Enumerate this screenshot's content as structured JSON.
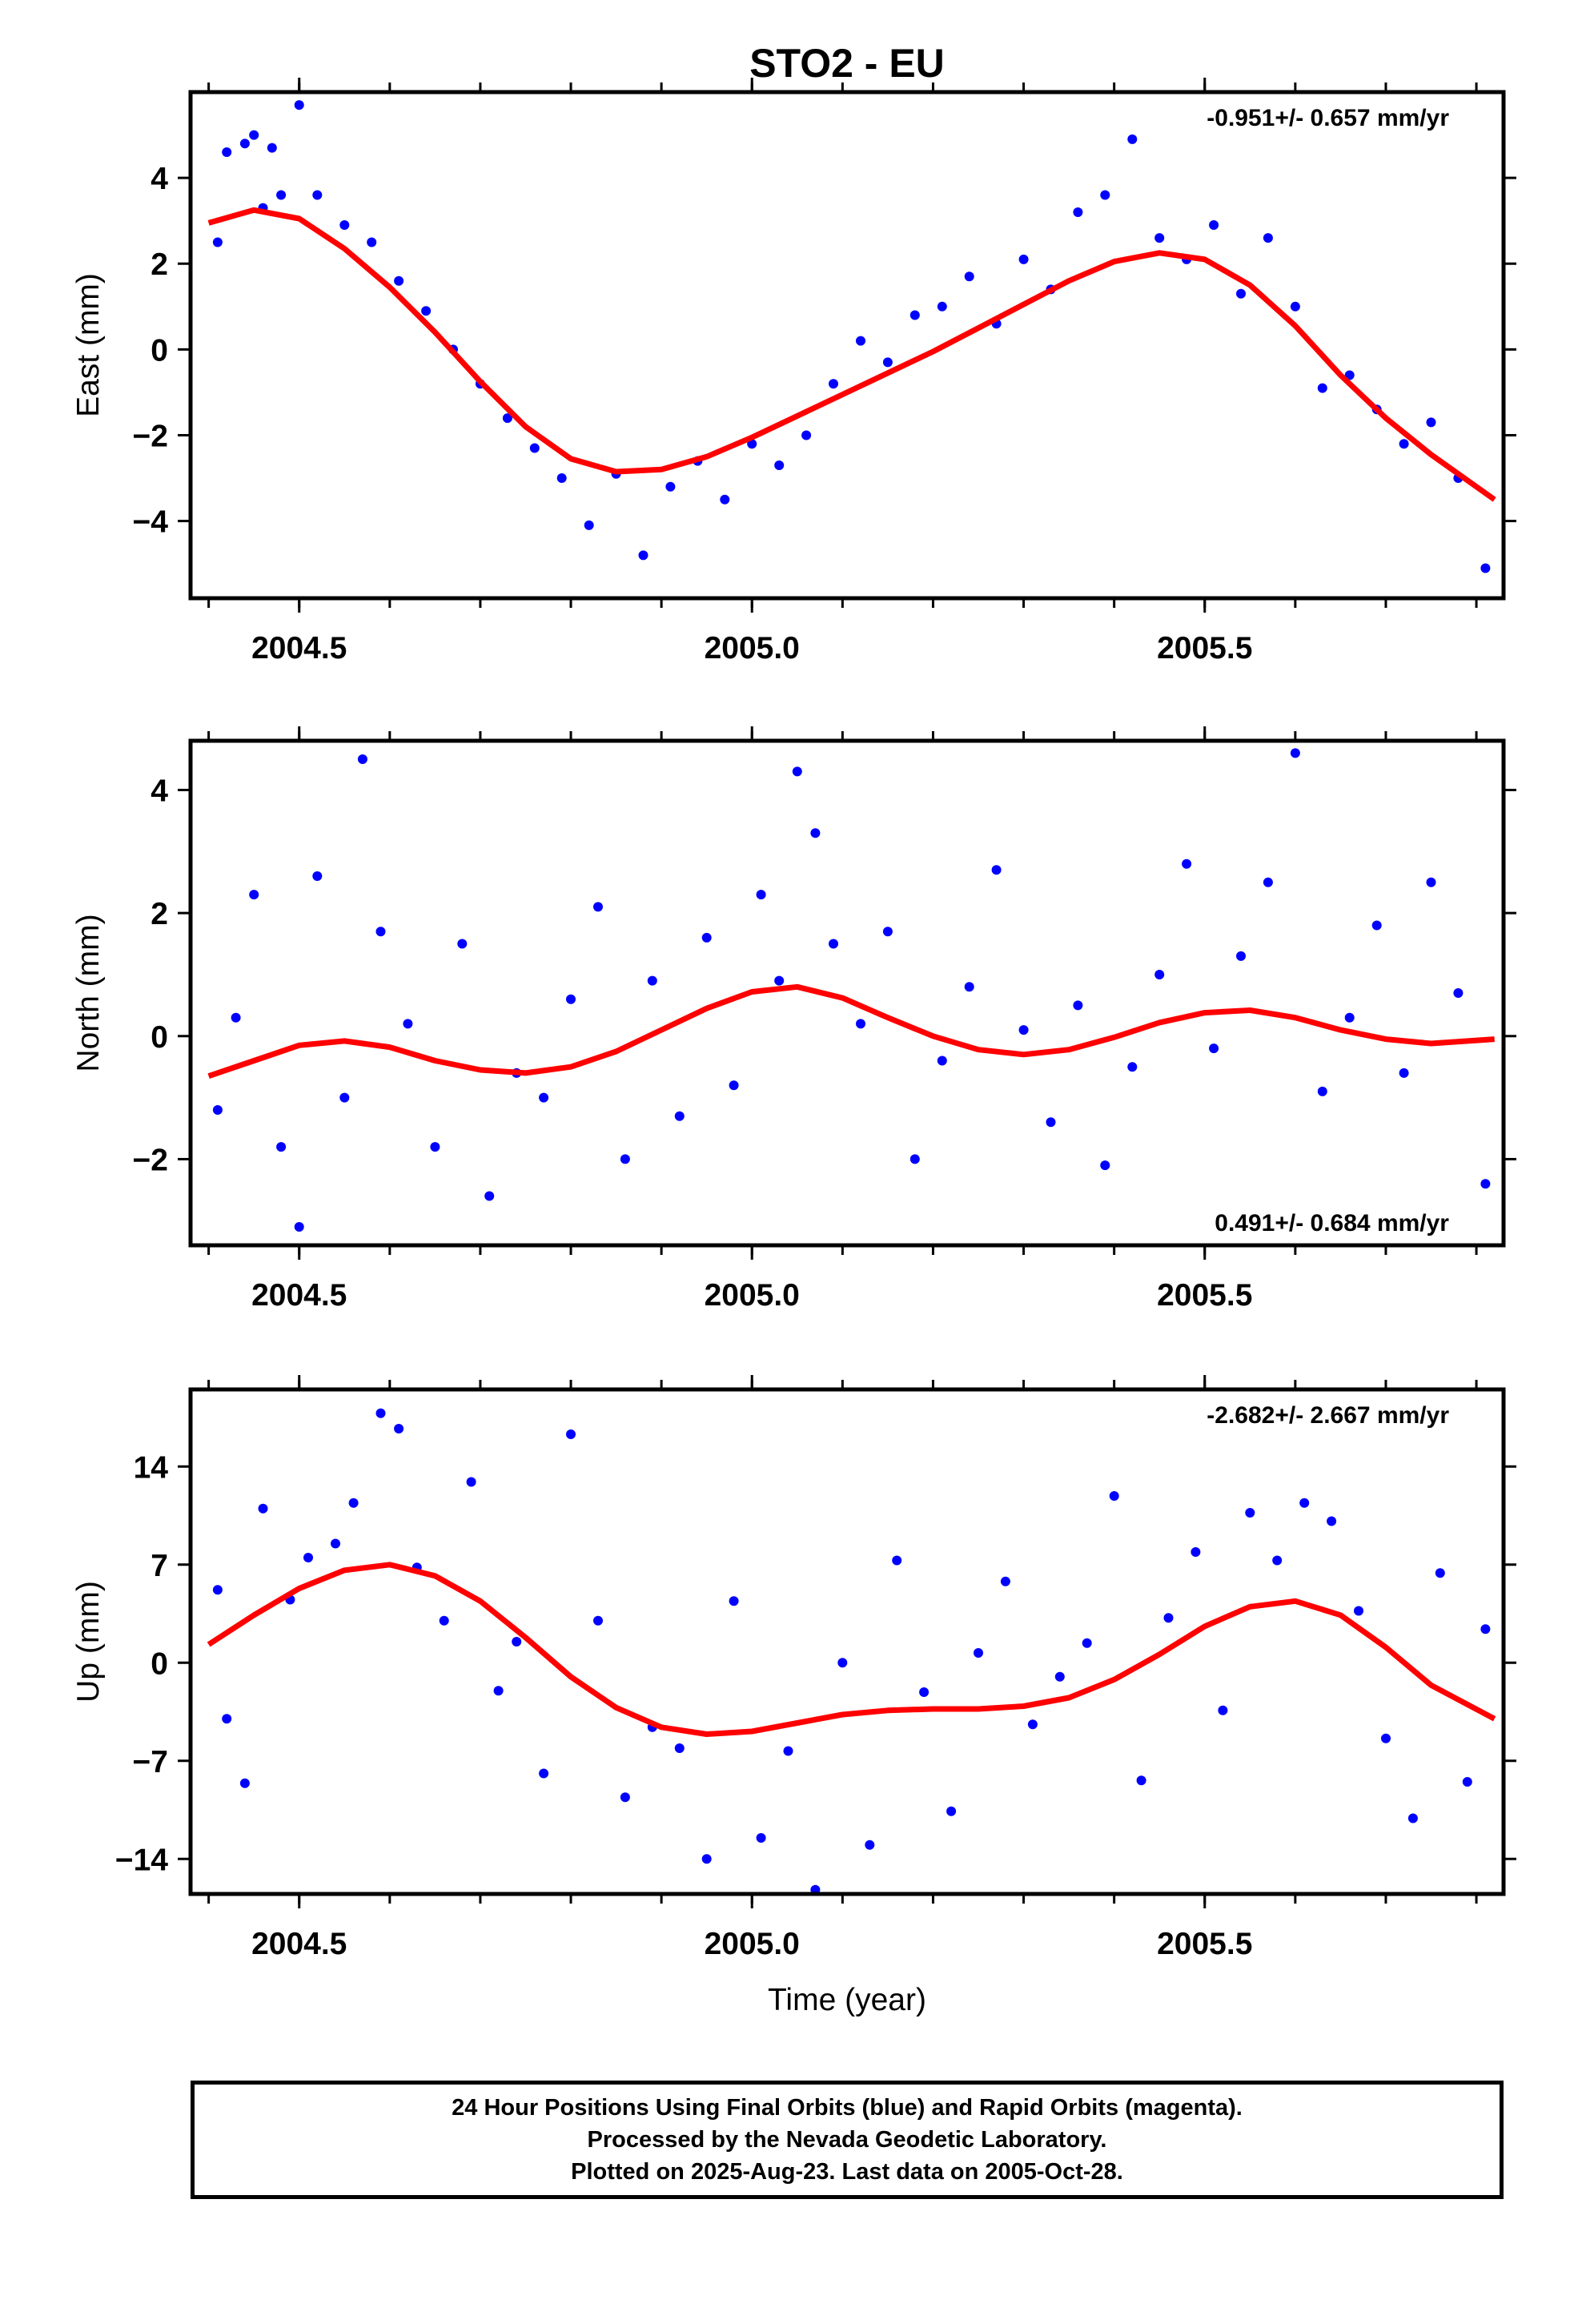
{
  "title": "STO2 - EU",
  "colors": {
    "points": "#0000ff",
    "fit": "#ff0000",
    "axes": "#000000",
    "background": "#ffffff"
  },
  "chart_data": [
    {
      "type": "scatter",
      "component": "East",
      "ylabel": "East (mm)",
      "xlabel": "",
      "xlim": [
        2004.38,
        2005.83
      ],
      "ylim": [
        -5.8,
        6.0
      ],
      "yticks": [
        -4,
        -2,
        0,
        2,
        4
      ],
      "ytick_labels": [
        "−4",
        "−2",
        "0",
        "2",
        "4"
      ],
      "xticks": [
        2004.5,
        2005.0,
        2005.5
      ],
      "xtick_labels": [
        "2004.5",
        "2005.0",
        "2005.5"
      ],
      "rate_annotation": "-0.951+/- 0.657 mm/yr",
      "annotation_position": "top-right",
      "grid": false,
      "series": [
        {
          "style": "points",
          "x": [
            2004.41,
            2004.42,
            2004.44,
            2004.45,
            2004.46,
            2004.47,
            2004.48,
            2004.5,
            2004.52,
            2004.55,
            2004.58,
            2004.61,
            2004.64,
            2004.67,
            2004.7,
            2004.73,
            2004.76,
            2004.79,
            2004.82,
            2004.85,
            2004.88,
            2004.91,
            2004.94,
            2004.97,
            2005.0,
            2005.03,
            2005.06,
            2005.09,
            2005.12,
            2005.15,
            2005.18,
            2005.21,
            2005.24,
            2005.27,
            2005.3,
            2005.33,
            2005.36,
            2005.39,
            2005.42,
            2005.45,
            2005.48,
            2005.51,
            2005.54,
            2005.57,
            2005.6,
            2005.63,
            2005.66,
            2005.69,
            2005.72,
            2005.75,
            2005.78,
            2005.81
          ],
          "y": [
            2.5,
            4.6,
            4.8,
            5.0,
            3.3,
            4.7,
            3.6,
            5.7,
            3.6,
            2.9,
            2.5,
            1.6,
            0.9,
            0.0,
            -0.8,
            -1.6,
            -2.3,
            -3.0,
            -4.1,
            -2.9,
            -4.8,
            -3.2,
            -2.6,
            -3.5,
            -2.2,
            -2.7,
            -2.0,
            -0.8,
            0.2,
            -0.3,
            0.8,
            1.0,
            1.7,
            0.6,
            2.1,
            1.4,
            3.2,
            3.6,
            4.9,
            2.6,
            2.1,
            2.9,
            1.3,
            2.6,
            1.0,
            -0.9,
            -0.6,
            -1.4,
            -2.2,
            -1.7,
            -3.0,
            -5.1
          ]
        },
        {
          "style": "line",
          "x": [
            2004.4,
            2004.45,
            2004.5,
            2004.55,
            2004.6,
            2004.65,
            2004.7,
            2004.75,
            2004.8,
            2004.85,
            2004.9,
            2004.95,
            2005.0,
            2005.05,
            2005.1,
            2005.15,
            2005.2,
            2005.25,
            2005.3,
            2005.35,
            2005.4,
            2005.45,
            2005.5,
            2005.55,
            2005.6,
            2005.65,
            2005.7,
            2005.75,
            2005.82
          ],
          "y": [
            2.95,
            3.25,
            3.05,
            2.35,
            1.45,
            0.4,
            -0.75,
            -1.8,
            -2.55,
            -2.85,
            -2.8,
            -2.5,
            -2.05,
            -1.55,
            -1.05,
            -0.55,
            -0.05,
            0.5,
            1.05,
            1.6,
            2.05,
            2.25,
            2.1,
            1.5,
            0.55,
            -0.6,
            -1.6,
            -2.45,
            -3.5
          ]
        }
      ]
    },
    {
      "type": "scatter",
      "component": "North",
      "ylabel": "North (mm)",
      "xlabel": "",
      "xlim": [
        2004.38,
        2005.83
      ],
      "ylim": [
        -3.4,
        4.8
      ],
      "yticks": [
        -2,
        0,
        2,
        4
      ],
      "ytick_labels": [
        "−2",
        "0",
        "2",
        "4"
      ],
      "xticks": [
        2004.5,
        2005.0,
        2005.5
      ],
      "xtick_labels": [
        "2004.5",
        "2005.0",
        "2005.5"
      ],
      "rate_annotation": "0.491+/- 0.684 mm/yr",
      "annotation_position": "bottom-right",
      "grid": false,
      "series": [
        {
          "style": "points",
          "x": [
            2004.41,
            2004.43,
            2004.45,
            2004.48,
            2004.5,
            2004.52,
            2004.55,
            2004.57,
            2004.59,
            2004.62,
            2004.65,
            2004.68,
            2004.71,
            2004.74,
            2004.77,
            2004.8,
            2004.83,
            2004.86,
            2004.89,
            2004.92,
            2004.95,
            2004.98,
            2005.01,
            2005.03,
            2005.05,
            2005.07,
            2005.09,
            2005.12,
            2005.15,
            2005.18,
            2005.21,
            2005.24,
            2005.27,
            2005.3,
            2005.33,
            2005.36,
            2005.39,
            2005.42,
            2005.45,
            2005.48,
            2005.51,
            2005.54,
            2005.57,
            2005.6,
            2005.63,
            2005.66,
            2005.69,
            2005.72,
            2005.75,
            2005.78,
            2005.81
          ],
          "y": [
            -1.2,
            0.3,
            2.3,
            -1.8,
            -3.1,
            2.6,
            -1.0,
            4.5,
            1.7,
            0.2,
            -1.8,
            1.5,
            -2.6,
            -0.6,
            -1.0,
            0.6,
            2.1,
            -2.0,
            0.9,
            -1.3,
            1.6,
            -0.8,
            2.3,
            0.9,
            4.3,
            3.3,
            1.5,
            0.2,
            1.7,
            -2.0,
            -0.4,
            0.8,
            2.7,
            0.1,
            -1.4,
            0.5,
            -2.1,
            -0.5,
            1.0,
            2.8,
            -0.2,
            1.3,
            2.5,
            4.6,
            -0.9,
            0.3,
            1.8,
            -0.6,
            2.5,
            0.7,
            -2.4
          ]
        },
        {
          "style": "line",
          "x": [
            2004.4,
            2004.45,
            2004.5,
            2004.55,
            2004.6,
            2004.65,
            2004.7,
            2004.75,
            2004.8,
            2004.85,
            2004.9,
            2004.95,
            2005.0,
            2005.05,
            2005.1,
            2005.15,
            2005.2,
            2005.25,
            2005.3,
            2005.35,
            2005.4,
            2005.45,
            2005.5,
            2005.55,
            2005.6,
            2005.65,
            2005.7,
            2005.75,
            2005.82
          ],
          "y": [
            -0.65,
            -0.4,
            -0.15,
            -0.08,
            -0.18,
            -0.4,
            -0.55,
            -0.6,
            -0.5,
            -0.25,
            0.1,
            0.45,
            0.72,
            0.8,
            0.62,
            0.3,
            0.0,
            -0.22,
            -0.3,
            -0.22,
            -0.02,
            0.22,
            0.38,
            0.42,
            0.3,
            0.1,
            -0.05,
            -0.12,
            -0.05
          ]
        }
      ]
    },
    {
      "type": "scatter",
      "component": "Up",
      "ylabel": "Up (mm)",
      "xlabel": "Time (year)",
      "xlim": [
        2004.38,
        2005.83
      ],
      "ylim": [
        -16.5,
        19.5
      ],
      "yticks": [
        -14,
        -7,
        0,
        7,
        14
      ],
      "ytick_labels": [
        "−14",
        "−7",
        "0",
        "7",
        "14"
      ],
      "xticks": [
        2004.5,
        2005.0,
        2005.5
      ],
      "xtick_labels": [
        "2004.5",
        "2005.0",
        "2005.5"
      ],
      "rate_annotation": "-2.682+/- 2.667 mm/yr",
      "annotation_position": "top-right",
      "grid": false,
      "series": [
        {
          "style": "points",
          "x": [
            2004.41,
            2004.42,
            2004.44,
            2004.46,
            2004.49,
            2004.51,
            2004.54,
            2004.56,
            2004.59,
            2004.61,
            2004.63,
            2004.66,
            2004.69,
            2004.72,
            2004.74,
            2004.77,
            2004.8,
            2004.83,
            2004.86,
            2004.89,
            2004.92,
            2004.95,
            2004.98,
            2005.01,
            2005.04,
            2005.07,
            2005.1,
            2005.13,
            2005.16,
            2005.19,
            2005.22,
            2005.25,
            2005.28,
            2005.31,
            2005.34,
            2005.37,
            2005.4,
            2005.43,
            2005.46,
            2005.49,
            2005.52,
            2005.55,
            2005.58,
            2005.61,
            2005.64,
            2005.67,
            2005.7,
            2005.73,
            2005.76,
            2005.79,
            2005.81
          ],
          "y": [
            5.2,
            -4.0,
            -8.6,
            11.0,
            4.5,
            7.5,
            8.5,
            11.4,
            17.8,
            16.7,
            6.8,
            3.0,
            12.9,
            -2.0,
            1.5,
            -7.9,
            16.3,
            3.0,
            -9.6,
            -4.6,
            -6.1,
            -14.0,
            4.4,
            -12.5,
            -6.3,
            -16.2,
            0.0,
            -13.0,
            7.3,
            -2.1,
            -10.6,
            0.7,
            5.8,
            -4.4,
            -1.0,
            1.4,
            11.9,
            -8.4,
            3.2,
            7.9,
            -3.4,
            10.7,
            7.3,
            11.4,
            10.1,
            3.7,
            -5.4,
            -11.1,
            6.4,
            -8.5,
            2.4
          ]
        },
        {
          "style": "line",
          "x": [
            2004.4,
            2004.45,
            2004.5,
            2004.55,
            2004.6,
            2004.65,
            2004.7,
            2004.75,
            2004.8,
            2004.85,
            2004.9,
            2004.95,
            2005.0,
            2005.05,
            2005.1,
            2005.15,
            2005.2,
            2005.25,
            2005.3,
            2005.35,
            2005.4,
            2005.45,
            2005.5,
            2005.55,
            2005.6,
            2005.65,
            2005.7,
            2005.75,
            2005.82
          ],
          "y": [
            1.3,
            3.4,
            5.3,
            6.6,
            7.0,
            6.2,
            4.4,
            1.8,
            -1.0,
            -3.2,
            -4.6,
            -5.1,
            -4.9,
            -4.3,
            -3.7,
            -3.4,
            -3.3,
            -3.3,
            -3.1,
            -2.5,
            -1.2,
            0.6,
            2.6,
            4.0,
            4.4,
            3.4,
            1.1,
            -1.6,
            -4.0
          ]
        }
      ]
    }
  ],
  "footer": {
    "line1": "24 Hour Positions Using Final Orbits (blue) and Rapid Orbits (magenta).",
    "line2": "Processed by the Nevada Geodetic Laboratory.",
    "line3": "Plotted on 2025-Aug-23. Last data on 2005-Oct-28."
  }
}
